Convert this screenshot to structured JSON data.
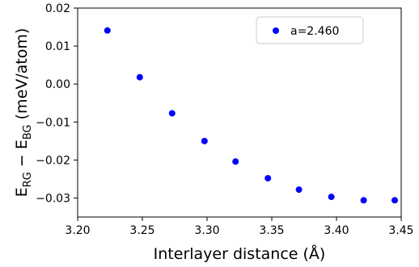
{
  "chart_data": {
    "type": "scatter",
    "title": "",
    "xlabel": "Interlayer distance (Å)",
    "ylabel": {
      "main": "E",
      "sub1": "RG",
      "minus": " − ",
      "main2": "E",
      "sub2": "BG",
      "unit": " (meV/atom)"
    },
    "xlim": [
      3.2,
      3.45
    ],
    "ylim": [
      -0.035,
      0.02
    ],
    "xticks": [
      "3.20",
      "3.25",
      "3.30",
      "3.35",
      "3.40",
      "3.45"
    ],
    "yticks": [
      "0.02",
      "0.01",
      "0.00",
      "−0.01",
      "−0.02",
      "−0.03"
    ],
    "legend_position": "upper-right",
    "marker_color": "#0000ff",
    "series": [
      {
        "name": "a=2.460",
        "x": [
          3.223,
          3.248,
          3.273,
          3.298,
          3.322,
          3.347,
          3.371,
          3.396,
          3.421,
          3.445
        ],
        "y": [
          0.0141,
          0.0018,
          -0.0077,
          -0.015,
          -0.0204,
          -0.0248,
          -0.0278,
          -0.0297,
          -0.0306,
          -0.0306
        ]
      }
    ]
  }
}
